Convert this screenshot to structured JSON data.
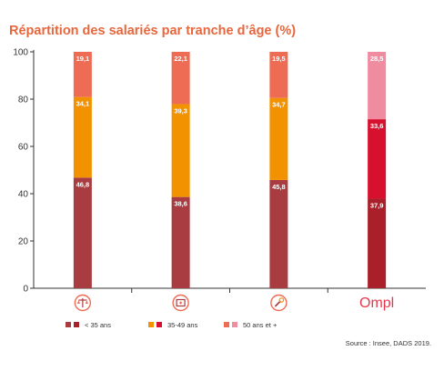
{
  "chart_data": {
    "type": "bar",
    "stacked": true,
    "title": "Répartition des salariés par tranche d’âge (%)",
    "ylim": [
      0,
      100
    ],
    "yticks": [
      0,
      20,
      40,
      60,
      80,
      100
    ],
    "categories": [
      {
        "kind": "icon",
        "icon": "scale-of-justice-icon"
      },
      {
        "kind": "icon",
        "icon": "health-care-icon"
      },
      {
        "kind": "icon",
        "icon": "technical-wrench-icon"
      },
      {
        "kind": "text",
        "label": "Ompl"
      }
    ],
    "series": [
      {
        "name": "< 35 ans",
        "values": [
          46.8,
          38.6,
          45.8,
          37.9
        ],
        "labels": [
          "46,8",
          "38,6",
          "45,8",
          "37,9"
        ]
      },
      {
        "name": "35-49 ans",
        "values": [
          34.1,
          39.3,
          34.7,
          33.6
        ],
        "labels": [
          "34,1",
          "39,3",
          "34,7",
          "33,6"
        ]
      },
      {
        "name": "50 ans et +",
        "values": [
          19.1,
          22.1,
          19.5,
          28.5
        ],
        "labels": [
          "19,1",
          "22,1",
          "19,5",
          "28,5"
        ]
      }
    ],
    "colors": [
      [
        "#a83c40",
        "#f29200",
        "#ee6b54"
      ],
      [
        "#a83c40",
        "#f29200",
        "#ee6b54"
      ],
      [
        "#a83c40",
        "#f29200",
        "#ee6b54"
      ],
      [
        "#a91f2a",
        "#d7102f",
        "#f08ca0"
      ]
    ],
    "legend": [
      {
        "label": "< 35 ans",
        "swatches": [
          "#a83c40",
          "#a91f2a"
        ]
      },
      {
        "label": "35-49 ans",
        "swatches": [
          "#f29200",
          "#d7102f"
        ]
      },
      {
        "label": "50 ans et +",
        "swatches": [
          "#ee6b54",
          "#f08ca0"
        ]
      }
    ],
    "legend_position": "bottom",
    "grid": false,
    "source": "Source : Insee, DADS 2019."
  }
}
